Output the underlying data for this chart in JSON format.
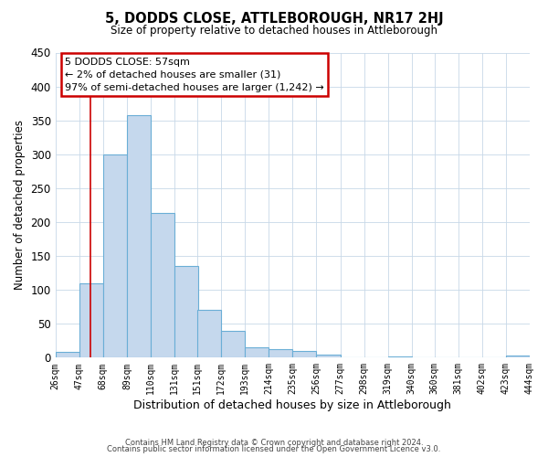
{
  "title": "5, DODDS CLOSE, ATTLEBOROUGH, NR17 2HJ",
  "subtitle": "Size of property relative to detached houses in Attleborough",
  "xlabel": "Distribution of detached houses by size in Attleborough",
  "ylabel": "Number of detached properties",
  "footer_lines": [
    "Contains HM Land Registry data © Crown copyright and database right 2024.",
    "Contains public sector information licensed under the Open Government Licence v3.0."
  ],
  "bin_labels": [
    "26sqm",
    "47sqm",
    "68sqm",
    "89sqm",
    "110sqm",
    "131sqm",
    "151sqm",
    "172sqm",
    "193sqm",
    "214sqm",
    "235sqm",
    "256sqm",
    "277sqm",
    "298sqm",
    "319sqm",
    "340sqm",
    "360sqm",
    "381sqm",
    "402sqm",
    "423sqm",
    "444sqm"
  ],
  "bin_edges": [
    26,
    47,
    68,
    89,
    110,
    131,
    151,
    172,
    193,
    214,
    235,
    256,
    277,
    298,
    319,
    340,
    360,
    381,
    402,
    423,
    444
  ],
  "bar_heights": [
    8,
    110,
    300,
    358,
    213,
    135,
    70,
    40,
    15,
    12,
    10,
    5,
    0,
    0,
    2,
    0,
    1,
    0,
    0,
    3
  ],
  "bar_color": "#c5d8ed",
  "bar_edge_color": "#6aaed6",
  "property_line_x": 57,
  "property_line_color": "#cc0000",
  "annotation_title": "5 DODDS CLOSE: 57sqm",
  "annotation_line1": "← 2% of detached houses are smaller (31)",
  "annotation_line2": "97% of semi-detached houses are larger (1,242) →",
  "annotation_box_color": "#cc0000",
  "ylim": [
    0,
    450
  ],
  "yticks": [
    0,
    50,
    100,
    150,
    200,
    250,
    300,
    350,
    400,
    450
  ],
  "background_color": "#ffffff",
  "grid_color": "#c8d8e8"
}
